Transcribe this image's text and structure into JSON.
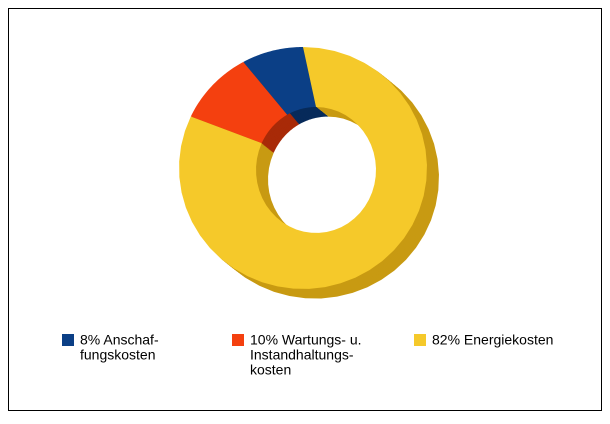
{
  "chart_data": {
    "type": "donut",
    "categories": [
      [
        "8% Anschaf-",
        "fungskosten"
      ],
      [
        "10% Wartungs- u.",
        "Instandhaltungs-",
        "kosten"
      ],
      [
        "82% Energiekosten"
      ]
    ],
    "values": [
      8,
      10,
      82
    ],
    "colors": [
      "#0b3f86",
      "#f4400f",
      "#f5c92a"
    ],
    "shade_colors": [
      "#072a5a",
      "#a82a08",
      "#c89a12"
    ]
  }
}
